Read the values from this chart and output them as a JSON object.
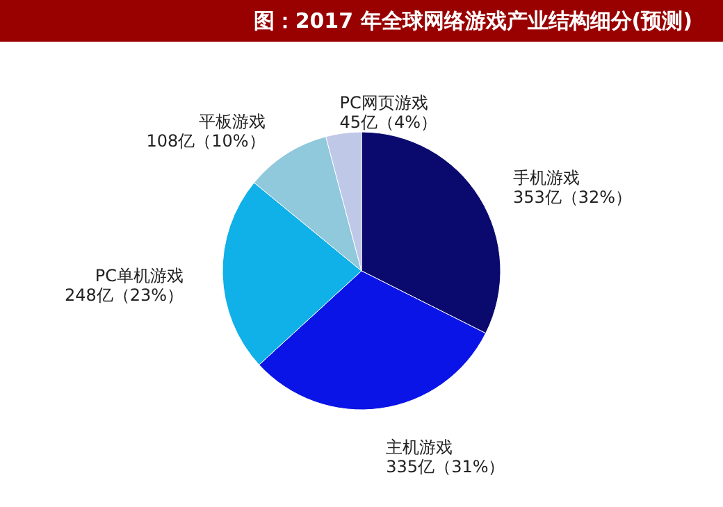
{
  "chart_data": {
    "type": "pie",
    "title": "图：2017 年全球网络游戏产业结构细分(预测)",
    "categories": [
      "手机游戏",
      "主机游戏",
      "PC单机游戏",
      "平板游戏",
      "PC网页游戏"
    ],
    "values": [
      353,
      335,
      248,
      108,
      45
    ],
    "colors": [
      "#0a0a6e",
      "#0a14e6",
      "#10b0e8",
      "#90c8dc",
      "#c0c8e8"
    ],
    "value_labels": [
      "353亿（32%）",
      "335亿（31%）",
      "248亿（23%）",
      "108亿（10%）",
      "45亿（4%）"
    ],
    "legend": false
  }
}
